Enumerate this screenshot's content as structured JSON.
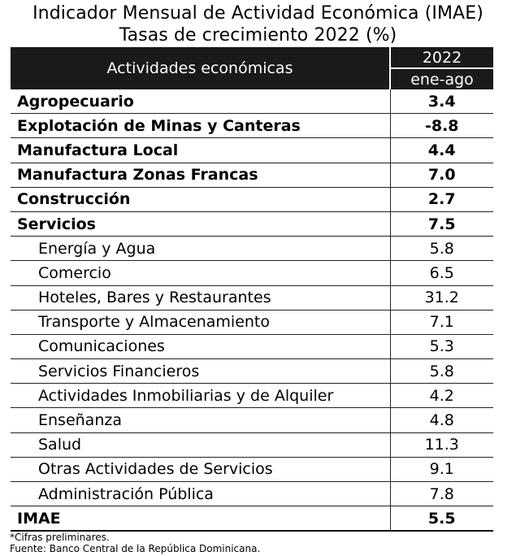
{
  "title": {
    "line1": "Indicador Mensual de Actividad Económica (IMAE)",
    "line2": "Tasas de crecimiento 2022 (%)"
  },
  "table": {
    "header_activity": "Actividades económicas",
    "header_year": "2022",
    "header_period": "ene-ago",
    "rows": [
      {
        "label": "Agropecuario",
        "value": "3.4"
      },
      {
        "label": "Explotación de Minas y Canteras",
        "value": "-8.8"
      },
      {
        "label": "Manufactura Local",
        "value": "4.4"
      },
      {
        "label": "Manufactura Zonas Francas",
        "value": "7.0"
      },
      {
        "label": "Construcción",
        "value": "2.7"
      },
      {
        "label": "Servicios",
        "value": "7.5"
      },
      {
        "label": "Energía y Agua",
        "value": "5.8"
      },
      {
        "label": "Comercio",
        "value": "6.5"
      },
      {
        "label": "Hoteles, Bares y Restaurantes",
        "value": "31.2"
      },
      {
        "label": "Transporte y Almacenamiento",
        "value": "7.1"
      },
      {
        "label": "Comunicaciones",
        "value": "5.3"
      },
      {
        "label": "Servicios Financieros",
        "value": "5.8"
      },
      {
        "label": "Actividades Inmobiliarias y de Alquiler",
        "value": "4.2"
      },
      {
        "label": "Enseñanza",
        "value": "4.8"
      },
      {
        "label": "Salud",
        "value": "11.3"
      },
      {
        "label": "Otras Actividades de Servicios",
        "value": "9.1"
      },
      {
        "label": "Administración Pública",
        "value": "7.8"
      },
      {
        "label": "IMAE",
        "value": "5.5"
      }
    ]
  },
  "notes": {
    "preliminary": "*Cifras preliminares.",
    "source": "Fuente: Banco Central de la República Dominicana."
  }
}
